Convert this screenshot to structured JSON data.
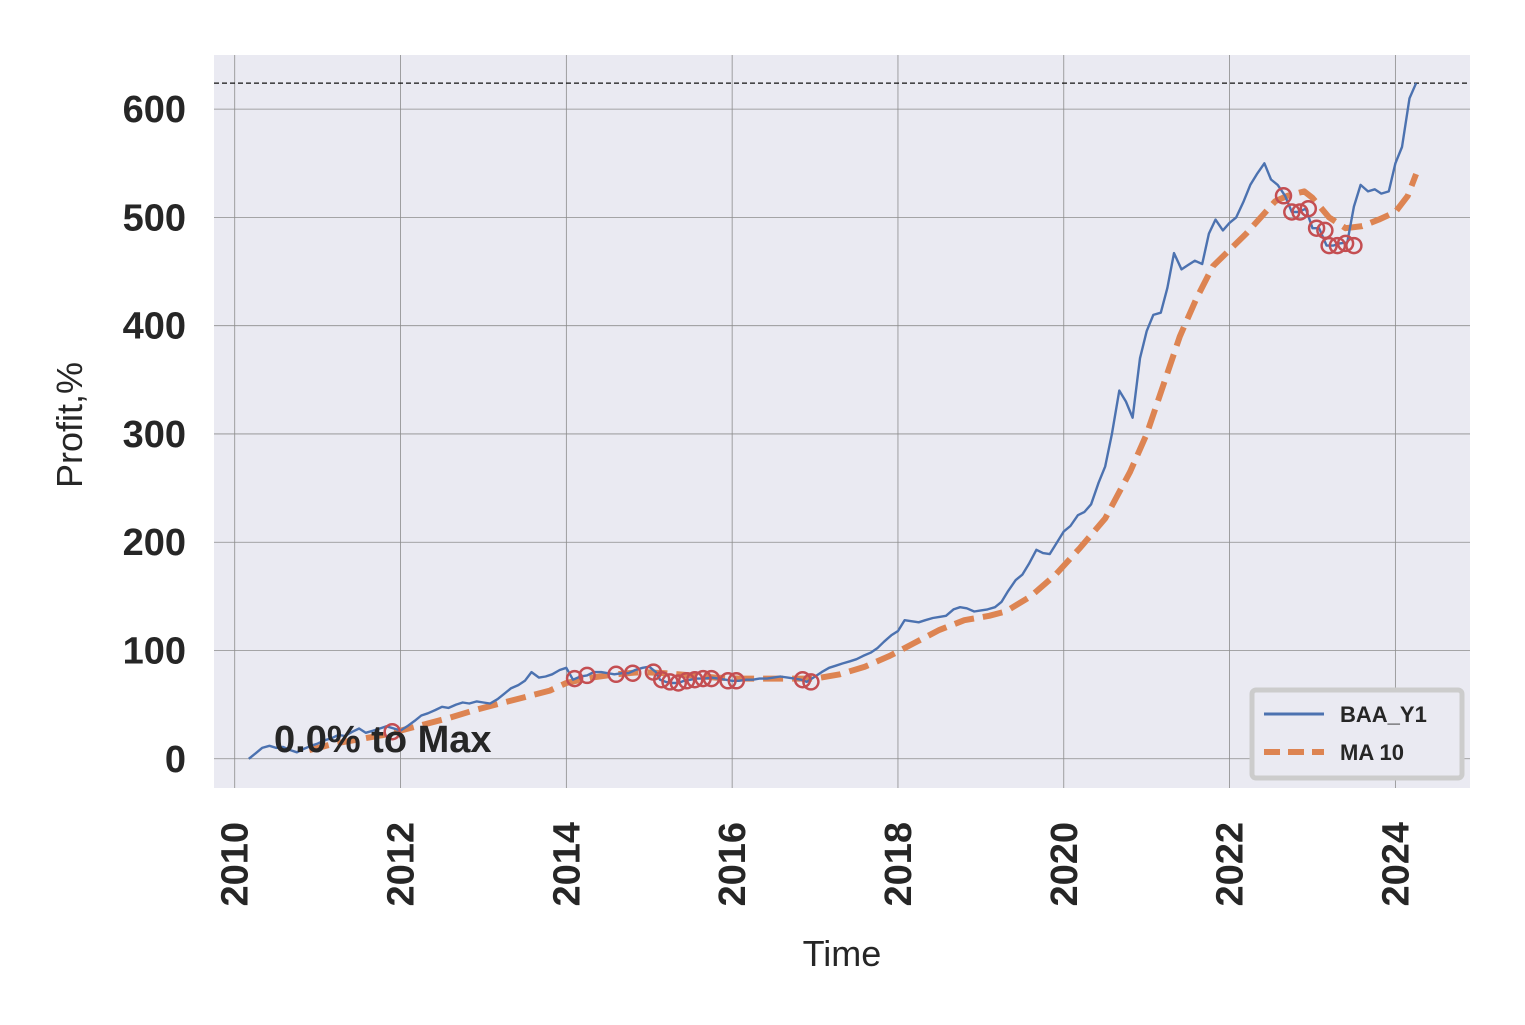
{
  "chart_data": {
    "type": "line",
    "xlabel": "Time",
    "ylabel": "Profit,%",
    "xlim": [
      2009.75,
      2024.9
    ],
    "ylim": [
      -27,
      650
    ],
    "x_ticks": [
      2010,
      2012,
      2014,
      2016,
      2018,
      2020,
      2022,
      2024
    ],
    "y_ticks": [
      0,
      100,
      200,
      300,
      400,
      500,
      600
    ],
    "grid": true,
    "max_line_y": 624,
    "annotation": "0.0% to Max",
    "legend": {
      "placement": "lower-right",
      "entries": [
        "BAA_Y1",
        "MA 10"
      ]
    },
    "colors": {
      "series1": "#4c72b0",
      "series2": "#dd8452",
      "markers": "#c44e52",
      "background": "#eaeaf2",
      "grid": "#8c8c8c"
    },
    "series": [
      {
        "name": "BAA_Y1",
        "style": "solid",
        "points": [
          [
            2010.17,
            0
          ],
          [
            2010.25,
            5
          ],
          [
            2010.33,
            10
          ],
          [
            2010.42,
            12
          ],
          [
            2010.5,
            10
          ],
          [
            2010.58,
            11
          ],
          [
            2010.67,
            8
          ],
          [
            2010.75,
            6
          ],
          [
            2010.83,
            9
          ],
          [
            2010.92,
            12
          ],
          [
            2011.0,
            14
          ],
          [
            2011.08,
            17
          ],
          [
            2011.17,
            19
          ],
          [
            2011.25,
            22
          ],
          [
            2011.33,
            21
          ],
          [
            2011.42,
            25
          ],
          [
            2011.5,
            28
          ],
          [
            2011.58,
            24
          ],
          [
            2011.67,
            26
          ],
          [
            2011.75,
            28
          ],
          [
            2011.83,
            30
          ],
          [
            2011.92,
            28
          ],
          [
            2012.0,
            26
          ],
          [
            2012.08,
            30
          ],
          [
            2012.17,
            35
          ],
          [
            2012.25,
            40
          ],
          [
            2012.33,
            42
          ],
          [
            2012.42,
            45
          ],
          [
            2012.5,
            48
          ],
          [
            2012.58,
            47
          ],
          [
            2012.67,
            50
          ],
          [
            2012.75,
            52
          ],
          [
            2012.83,
            51
          ],
          [
            2012.92,
            53
          ],
          [
            2013.0,
            52
          ],
          [
            2013.08,
            51
          ],
          [
            2013.17,
            55
          ],
          [
            2013.25,
            60
          ],
          [
            2013.33,
            65
          ],
          [
            2013.42,
            68
          ],
          [
            2013.5,
            72
          ],
          [
            2013.58,
            80
          ],
          [
            2013.67,
            75
          ],
          [
            2013.75,
            76
          ],
          [
            2013.83,
            78
          ],
          [
            2013.92,
            82
          ],
          [
            2014.0,
            84
          ],
          [
            2014.08,
            73
          ],
          [
            2014.17,
            76
          ],
          [
            2014.25,
            77
          ],
          [
            2014.33,
            80
          ],
          [
            2014.42,
            80
          ],
          [
            2014.5,
            79
          ],
          [
            2014.58,
            78
          ],
          [
            2014.67,
            79
          ],
          [
            2014.75,
            79
          ],
          [
            2014.83,
            82
          ],
          [
            2014.92,
            84
          ],
          [
            2015.0,
            85
          ],
          [
            2015.08,
            80
          ],
          [
            2015.13,
            73
          ],
          [
            2015.2,
            71
          ],
          [
            2015.28,
            70
          ],
          [
            2015.35,
            70
          ],
          [
            2015.42,
            72
          ],
          [
            2015.5,
            73
          ],
          [
            2015.58,
            74
          ],
          [
            2015.67,
            74
          ],
          [
            2015.75,
            75
          ],
          [
            2015.83,
            74
          ],
          [
            2015.92,
            73
          ],
          [
            2016.0,
            72
          ],
          [
            2016.08,
            72
          ],
          [
            2016.17,
            73
          ],
          [
            2016.25,
            73
          ],
          [
            2016.33,
            74
          ],
          [
            2016.42,
            74
          ],
          [
            2016.5,
            75
          ],
          [
            2016.58,
            76
          ],
          [
            2016.67,
            75
          ],
          [
            2016.75,
            74
          ],
          [
            2016.83,
            73
          ],
          [
            2016.9,
            71
          ],
          [
            2017.0,
            76
          ],
          [
            2017.08,
            80
          ],
          [
            2017.17,
            84
          ],
          [
            2017.25,
            86
          ],
          [
            2017.33,
            88
          ],
          [
            2017.42,
            90
          ],
          [
            2017.5,
            92
          ],
          [
            2017.58,
            95
          ],
          [
            2017.67,
            98
          ],
          [
            2017.75,
            102
          ],
          [
            2017.83,
            108
          ],
          [
            2017.92,
            114
          ],
          [
            2018.0,
            118
          ],
          [
            2018.08,
            128
          ],
          [
            2018.17,
            127
          ],
          [
            2018.25,
            126
          ],
          [
            2018.33,
            128
          ],
          [
            2018.42,
            130
          ],
          [
            2018.5,
            131
          ],
          [
            2018.58,
            132
          ],
          [
            2018.67,
            138
          ],
          [
            2018.75,
            140
          ],
          [
            2018.83,
            139
          ],
          [
            2018.92,
            136
          ],
          [
            2019.0,
            137
          ],
          [
            2019.08,
            138
          ],
          [
            2019.17,
            140
          ],
          [
            2019.25,
            145
          ],
          [
            2019.33,
            155
          ],
          [
            2019.42,
            165
          ],
          [
            2019.5,
            170
          ],
          [
            2019.58,
            180
          ],
          [
            2019.67,
            193
          ],
          [
            2019.75,
            190
          ],
          [
            2019.83,
            189
          ],
          [
            2019.92,
            200
          ],
          [
            2020.0,
            210
          ],
          [
            2020.08,
            215
          ],
          [
            2020.17,
            225
          ],
          [
            2020.25,
            228
          ],
          [
            2020.33,
            235
          ],
          [
            2020.42,
            255
          ],
          [
            2020.5,
            270
          ],
          [
            2020.58,
            300
          ],
          [
            2020.67,
            340
          ],
          [
            2020.75,
            330
          ],
          [
            2020.83,
            315
          ],
          [
            2020.92,
            370
          ],
          [
            2021.0,
            395
          ],
          [
            2021.08,
            410
          ],
          [
            2021.17,
            412
          ],
          [
            2021.25,
            435
          ],
          [
            2021.33,
            467
          ],
          [
            2021.42,
            452
          ],
          [
            2021.5,
            456
          ],
          [
            2021.58,
            460
          ],
          [
            2021.67,
            457
          ],
          [
            2021.75,
            485
          ],
          [
            2021.83,
            498
          ],
          [
            2021.92,
            488
          ],
          [
            2022.0,
            495
          ],
          [
            2022.08,
            500
          ],
          [
            2022.17,
            515
          ],
          [
            2022.25,
            530
          ],
          [
            2022.33,
            540
          ],
          [
            2022.42,
            550
          ],
          [
            2022.5,
            535
          ],
          [
            2022.58,
            530
          ],
          [
            2022.67,
            520
          ],
          [
            2022.75,
            505
          ],
          [
            2022.83,
            505
          ],
          [
            2022.92,
            508
          ],
          [
            2023.0,
            490
          ],
          [
            2023.08,
            490
          ],
          [
            2023.17,
            474
          ],
          [
            2023.25,
            474
          ],
          [
            2023.33,
            476
          ],
          [
            2023.42,
            477
          ],
          [
            2023.5,
            510
          ],
          [
            2023.58,
            530
          ],
          [
            2023.67,
            524
          ],
          [
            2023.75,
            526
          ],
          [
            2023.83,
            522
          ],
          [
            2023.92,
            524
          ],
          [
            2024.0,
            550
          ],
          [
            2024.08,
            565
          ],
          [
            2024.17,
            610
          ],
          [
            2024.25,
            624
          ]
        ]
      },
      {
        "name": "MA 10",
        "style": "dashed",
        "points": [
          [
            2010.9,
            8
          ],
          [
            2011.2,
            14
          ],
          [
            2011.5,
            18
          ],
          [
            2011.8,
            22
          ],
          [
            2012.0,
            26
          ],
          [
            2012.3,
            32
          ],
          [
            2012.6,
            38
          ],
          [
            2012.9,
            45
          ],
          [
            2013.2,
            51
          ],
          [
            2013.5,
            57
          ],
          [
            2013.8,
            63
          ],
          [
            2014.0,
            70
          ],
          [
            2014.3,
            75
          ],
          [
            2014.6,
            78
          ],
          [
            2014.9,
            80
          ],
          [
            2015.2,
            79
          ],
          [
            2015.5,
            77
          ],
          [
            2015.8,
            75
          ],
          [
            2016.1,
            74
          ],
          [
            2016.4,
            74
          ],
          [
            2016.7,
            74
          ],
          [
            2017.0,
            74
          ],
          [
            2017.3,
            78
          ],
          [
            2017.6,
            85
          ],
          [
            2017.9,
            95
          ],
          [
            2018.2,
            107
          ],
          [
            2018.5,
            119
          ],
          [
            2018.8,
            128
          ],
          [
            2019.1,
            132
          ],
          [
            2019.3,
            136
          ],
          [
            2019.6,
            150
          ],
          [
            2019.9,
            170
          ],
          [
            2020.2,
            195
          ],
          [
            2020.5,
            222
          ],
          [
            2020.8,
            265
          ],
          [
            2021.0,
            300
          ],
          [
            2021.2,
            345
          ],
          [
            2021.4,
            390
          ],
          [
            2021.6,
            425
          ],
          [
            2021.8,
            455
          ],
          [
            2022.0,
            470
          ],
          [
            2022.2,
            485
          ],
          [
            2022.4,
            502
          ],
          [
            2022.55,
            515
          ],
          [
            2022.7,
            520
          ],
          [
            2022.9,
            524
          ],
          [
            2023.0,
            518
          ],
          [
            2023.2,
            500
          ],
          [
            2023.4,
            490
          ],
          [
            2023.6,
            492
          ],
          [
            2023.8,
            498
          ],
          [
            2024.0,
            505
          ],
          [
            2024.15,
            520
          ],
          [
            2024.25,
            540
          ]
        ]
      }
    ],
    "markers": [
      [
        2011.9,
        25
      ],
      [
        2014.1,
        74
      ],
      [
        2014.25,
        77
      ],
      [
        2014.6,
        78
      ],
      [
        2014.8,
        79
      ],
      [
        2015.05,
        80
      ],
      [
        2015.15,
        73
      ],
      [
        2015.25,
        71
      ],
      [
        2015.35,
        70
      ],
      [
        2015.45,
        72
      ],
      [
        2015.55,
        73
      ],
      [
        2015.65,
        74
      ],
      [
        2015.75,
        74
      ],
      [
        2015.95,
        72
      ],
      [
        2016.05,
        72
      ],
      [
        2016.85,
        73
      ],
      [
        2016.95,
        71
      ],
      [
        2022.65,
        520
      ],
      [
        2022.75,
        505
      ],
      [
        2022.85,
        505
      ],
      [
        2022.95,
        508
      ],
      [
        2023.05,
        490
      ],
      [
        2023.15,
        488
      ],
      [
        2023.2,
        474
      ],
      [
        2023.3,
        474
      ],
      [
        2023.4,
        476
      ],
      [
        2023.5,
        474
      ]
    ]
  }
}
